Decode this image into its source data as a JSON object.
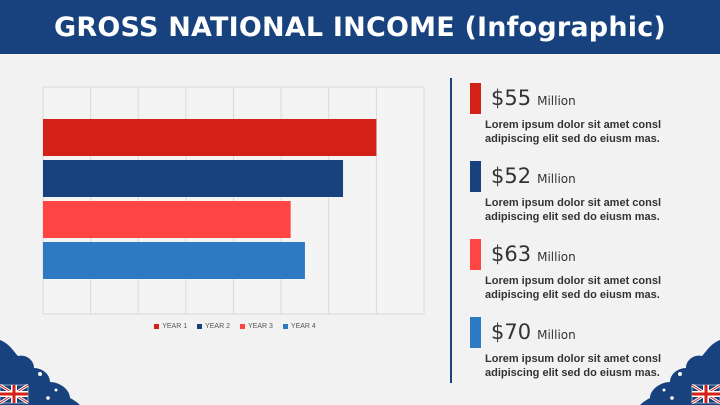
{
  "header": {
    "title": "GROSS NATIONAL INCOME (Infographic)"
  },
  "chart_data": {
    "type": "bar",
    "orientation": "horizontal",
    "title": "",
    "xlabel": "",
    "ylabel": "",
    "xlim": [
      0,
      80
    ],
    "grid": true,
    "legend_position": "bottom",
    "series": [
      {
        "name": "YEAR 1",
        "value": 70,
        "color": "#d42118"
      },
      {
        "name": "YEAR 2",
        "value": 63,
        "color": "#17427e"
      },
      {
        "name": "YEAR 3",
        "value": 52,
        "color": "#ff4444"
      },
      {
        "name": "YEAR 4",
        "value": 55,
        "color": "#2e7ac2"
      }
    ]
  },
  "stats": [
    {
      "value": "$55",
      "unit": "Million",
      "text_line1": "Lorem ipsum dolor sit amet consl",
      "text_line2": "adipiscing elit sed do eiusm mas.",
      "color": "#d42118"
    },
    {
      "value": "$52",
      "unit": "Million",
      "text_line1": "Lorem ipsum dolor sit amet consl",
      "text_line2": "adipiscing elit sed do eiusm mas.",
      "color": "#17427e"
    },
    {
      "value": "$63",
      "unit": "Million",
      "text_line1": "Lorem ipsum dolor sit amet consl",
      "text_line2": "adipiscing elit sed do eiusm mas.",
      "color": "#ff4444"
    },
    {
      "value": "$70",
      "unit": "Million",
      "text_line1": "Lorem ipsum dolor sit amet consl",
      "text_line2": "adipiscing elit sed do eiusm mas.",
      "color": "#2e7ac2"
    }
  ],
  "decorations": {
    "left": "australian-flag-icon",
    "right": "australian-flag-icon"
  }
}
